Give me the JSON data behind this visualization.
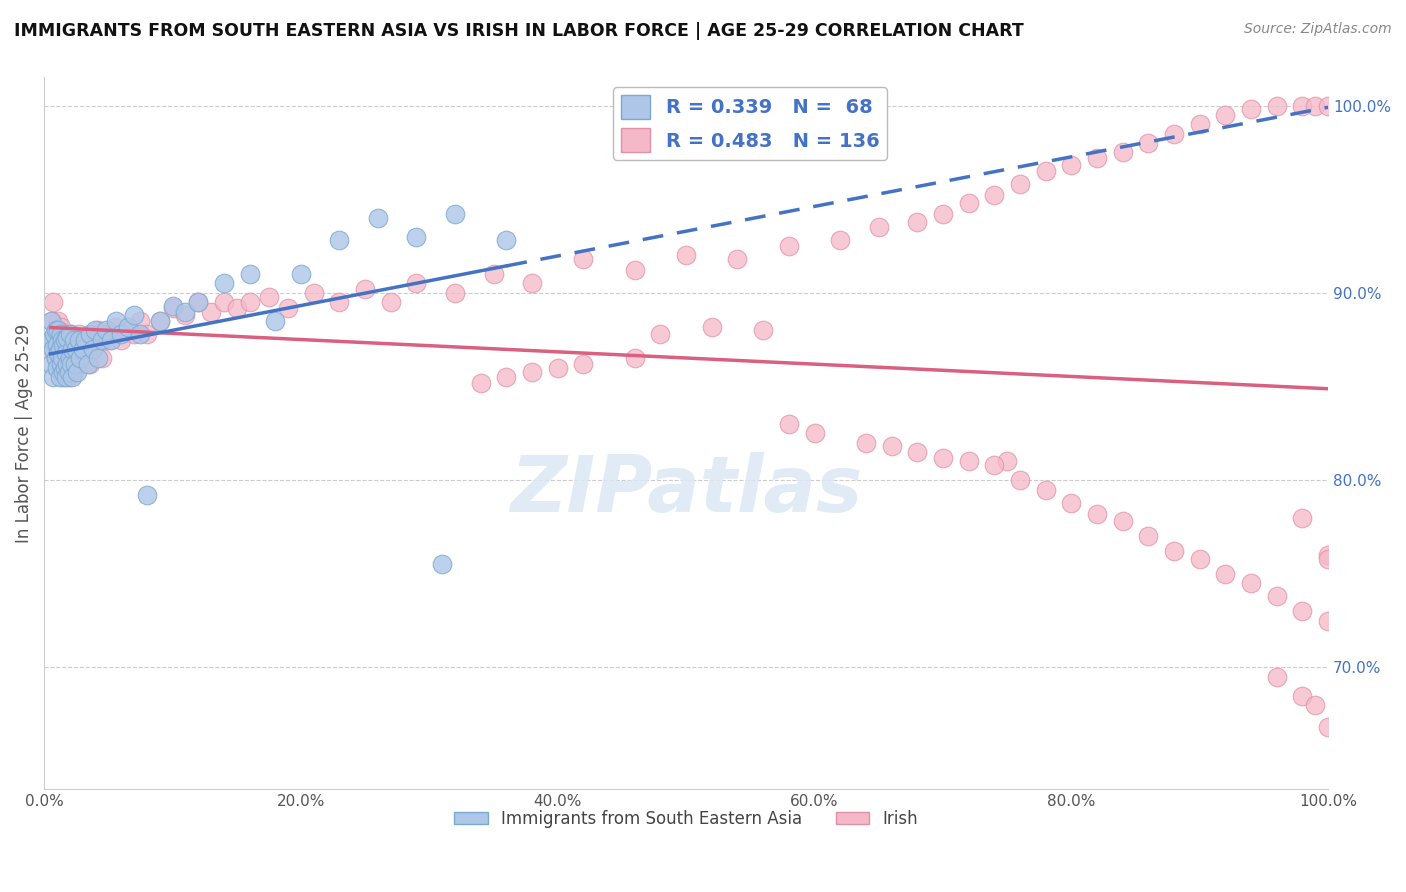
{
  "title": "IMMIGRANTS FROM SOUTH EASTERN ASIA VS IRISH IN LABOR FORCE | AGE 25-29 CORRELATION CHART",
  "source": "Source: ZipAtlas.com",
  "ylabel": "In Labor Force | Age 25-29",
  "r_blue": 0.339,
  "n_blue": 68,
  "r_pink": 0.483,
  "n_pink": 136,
  "blue_color": "#aec6e8",
  "pink_color": "#f5b8c8",
  "blue_line_color": "#4472c4",
  "pink_line_color": "#d96080",
  "legend_label_blue": "Immigrants from South Eastern Asia",
  "legend_label_pink": "Irish",
  "xlim": [
    0.0,
    1.0
  ],
  "ylim": [
    0.635,
    1.015
  ],
  "right_yticks": [
    0.7,
    0.8,
    0.9,
    1.0
  ],
  "right_yticklabels": [
    "70.0%",
    "80.0%",
    "90.0%",
    "100.0%"
  ],
  "xticks": [
    0.0,
    0.2,
    0.4,
    0.6,
    0.8,
    1.0
  ],
  "xticklabels": [
    "0.0%",
    "20.0%",
    "40.0%",
    "60.0%",
    "80.0%",
    "100.0%"
  ],
  "blue_x": [
    0.005,
    0.005,
    0.005,
    0.007,
    0.007,
    0.008,
    0.009,
    0.009,
    0.01,
    0.01,
    0.011,
    0.011,
    0.012,
    0.012,
    0.013,
    0.013,
    0.014,
    0.014,
    0.015,
    0.015,
    0.016,
    0.016,
    0.017,
    0.017,
    0.018,
    0.018,
    0.019,
    0.02,
    0.02,
    0.021,
    0.022,
    0.022,
    0.023,
    0.024,
    0.025,
    0.026,
    0.027,
    0.028,
    0.03,
    0.032,
    0.034,
    0.036,
    0.038,
    0.04,
    0.042,
    0.045,
    0.048,
    0.052,
    0.056,
    0.06,
    0.065,
    0.07,
    0.075,
    0.08,
    0.09,
    0.1,
    0.11,
    0.12,
    0.14,
    0.16,
    0.18,
    0.2,
    0.23,
    0.26,
    0.29,
    0.32,
    0.36,
    0.31
  ],
  "blue_y": [
    0.862,
    0.875,
    0.885,
    0.87,
    0.855,
    0.878,
    0.865,
    0.88,
    0.86,
    0.872,
    0.868,
    0.88,
    0.855,
    0.87,
    0.862,
    0.878,
    0.865,
    0.875,
    0.858,
    0.872,
    0.86,
    0.875,
    0.855,
    0.868,
    0.862,
    0.876,
    0.858,
    0.865,
    0.878,
    0.862,
    0.87,
    0.855,
    0.875,
    0.862,
    0.87,
    0.858,
    0.875,
    0.865,
    0.87,
    0.875,
    0.862,
    0.878,
    0.87,
    0.88,
    0.865,
    0.875,
    0.88,
    0.875,
    0.885,
    0.878,
    0.882,
    0.888,
    0.878,
    0.792,
    0.885,
    0.893,
    0.89,
    0.895,
    0.905,
    0.91,
    0.885,
    0.91,
    0.928,
    0.94,
    0.93,
    0.942,
    0.928,
    0.755
  ],
  "pink_x": [
    0.005,
    0.006,
    0.007,
    0.008,
    0.009,
    0.01,
    0.01,
    0.011,
    0.011,
    0.012,
    0.012,
    0.013,
    0.013,
    0.014,
    0.014,
    0.015,
    0.015,
    0.016,
    0.016,
    0.017,
    0.017,
    0.018,
    0.018,
    0.019,
    0.019,
    0.02,
    0.02,
    0.021,
    0.021,
    0.022,
    0.022,
    0.023,
    0.023,
    0.024,
    0.025,
    0.026,
    0.027,
    0.028,
    0.029,
    0.03,
    0.032,
    0.034,
    0.036,
    0.038,
    0.04,
    0.042,
    0.045,
    0.048,
    0.05,
    0.055,
    0.06,
    0.065,
    0.07,
    0.075,
    0.08,
    0.09,
    0.1,
    0.11,
    0.12,
    0.13,
    0.14,
    0.15,
    0.16,
    0.175,
    0.19,
    0.21,
    0.23,
    0.25,
    0.27,
    0.29,
    0.32,
    0.35,
    0.38,
    0.42,
    0.46,
    0.5,
    0.54,
    0.58,
    0.62,
    0.65,
    0.68,
    0.7,
    0.72,
    0.74,
    0.75,
    0.76,
    0.78,
    0.8,
    0.82,
    0.84,
    0.86,
    0.88,
    0.9,
    0.92,
    0.94,
    0.96,
    0.98,
    0.99,
    1.0,
    0.48,
    0.52,
    0.56,
    0.42,
    0.46,
    0.4,
    0.38,
    0.36,
    0.34,
    0.58,
    0.6,
    0.64,
    0.66,
    0.68,
    0.7,
    0.72,
    0.74,
    0.76,
    0.78,
    0.8,
    0.82,
    0.84,
    0.86,
    0.88,
    0.9,
    0.92,
    0.94,
    0.96,
    0.98,
    1.0,
    0.98,
    1.0,
    1.0,
    0.96,
    0.98,
    0.99,
    1.0
  ],
  "pink_y": [
    0.87,
    0.885,
    0.895,
    0.875,
    0.865,
    0.88,
    0.87,
    0.885,
    0.865,
    0.878,
    0.868,
    0.882,
    0.86,
    0.875,
    0.862,
    0.878,
    0.855,
    0.872,
    0.862,
    0.878,
    0.858,
    0.872,
    0.858,
    0.87,
    0.855,
    0.868,
    0.875,
    0.862,
    0.878,
    0.865,
    0.875,
    0.858,
    0.872,
    0.86,
    0.875,
    0.862,
    0.878,
    0.865,
    0.875,
    0.862,
    0.87,
    0.875,
    0.862,
    0.878,
    0.872,
    0.88,
    0.865,
    0.878,
    0.875,
    0.882,
    0.875,
    0.88,
    0.878,
    0.885,
    0.878,
    0.885,
    0.892,
    0.888,
    0.895,
    0.89,
    0.895,
    0.892,
    0.895,
    0.898,
    0.892,
    0.9,
    0.895,
    0.902,
    0.895,
    0.905,
    0.9,
    0.91,
    0.905,
    0.918,
    0.912,
    0.92,
    0.918,
    0.925,
    0.928,
    0.935,
    0.938,
    0.942,
    0.948,
    0.952,
    0.81,
    0.958,
    0.965,
    0.968,
    0.972,
    0.975,
    0.98,
    0.985,
    0.99,
    0.995,
    0.998,
    1.0,
    1.0,
    1.0,
    1.0,
    0.878,
    0.882,
    0.88,
    0.862,
    0.865,
    0.86,
    0.858,
    0.855,
    0.852,
    0.83,
    0.825,
    0.82,
    0.818,
    0.815,
    0.812,
    0.81,
    0.808,
    0.8,
    0.795,
    0.788,
    0.782,
    0.778,
    0.77,
    0.762,
    0.758,
    0.75,
    0.745,
    0.738,
    0.73,
    0.725,
    0.78,
    0.76,
    0.758,
    0.695,
    0.685,
    0.68,
    0.668
  ]
}
